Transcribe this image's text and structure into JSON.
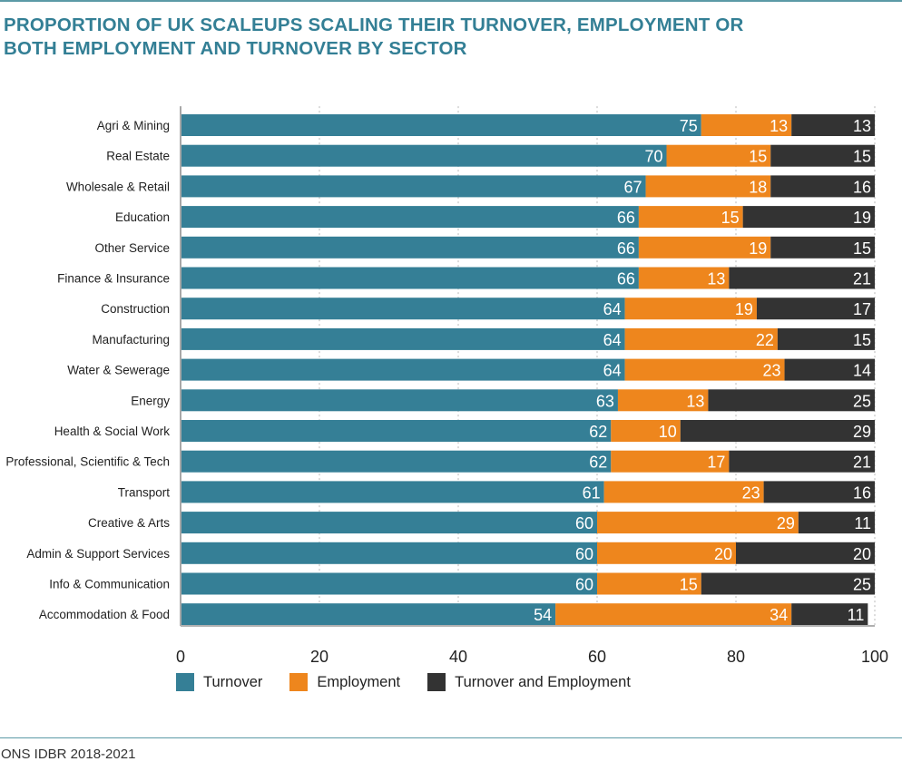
{
  "title_lines": [
    "PROPORTION OF UK SCALEUPS SCALING THEIR TURNOVER, EMPLOYMENT OR",
    "BOTH EMPLOYMENT AND TURNOVER BY SECTOR"
  ],
  "source": "ONS IDBR 2018-2021",
  "colors": {
    "turnover": "#357f96",
    "employment": "#ee861d",
    "both": "#333333",
    "title": "#337f95",
    "rule": "#5b9aa6"
  },
  "chart_data": {
    "type": "bar",
    "orientation": "horizontal",
    "stacked": true,
    "title": "PROPORTION OF UK SCALEUPS SCALING THEIR TURNOVER, EMPLOYMENT OR BOTH EMPLOYMENT AND TURNOVER BY SECTOR",
    "xlabel": "",
    "ylabel": "",
    "xlim": [
      0,
      100
    ],
    "xticks": [
      0,
      20,
      40,
      60,
      80,
      100
    ],
    "grid": true,
    "legend_position": "bottom-left",
    "categories": [
      "Agri & Mining",
      "Real Estate",
      "Wholesale & Retail",
      "Education",
      "Other Service",
      "Finance & Insurance",
      "Construction",
      "Manufacturing",
      "Water & Sewerage",
      "Energy",
      "Health & Social Work",
      "Professional, Scientific & Tech",
      "Transport",
      "Creative & Arts",
      "Admin & Support Services",
      "Info & Communication",
      "Accommodation & Food"
    ],
    "series": [
      {
        "name": "Turnover",
        "key": "turnover",
        "values": [
          75,
          70,
          67,
          66,
          66,
          66,
          64,
          64,
          64,
          63,
          62,
          62,
          61,
          60,
          60,
          60,
          54
        ]
      },
      {
        "name": "Employment",
        "key": "employment",
        "values": [
          13,
          15,
          18,
          15,
          19,
          13,
          19,
          22,
          23,
          13,
          10,
          17,
          23,
          29,
          20,
          15,
          34
        ]
      },
      {
        "name": "Turnover and Employment",
        "key": "both",
        "values": [
          13,
          15,
          16,
          19,
          15,
          21,
          17,
          15,
          14,
          25,
          29,
          21,
          16,
          11,
          20,
          25,
          11
        ]
      }
    ]
  }
}
